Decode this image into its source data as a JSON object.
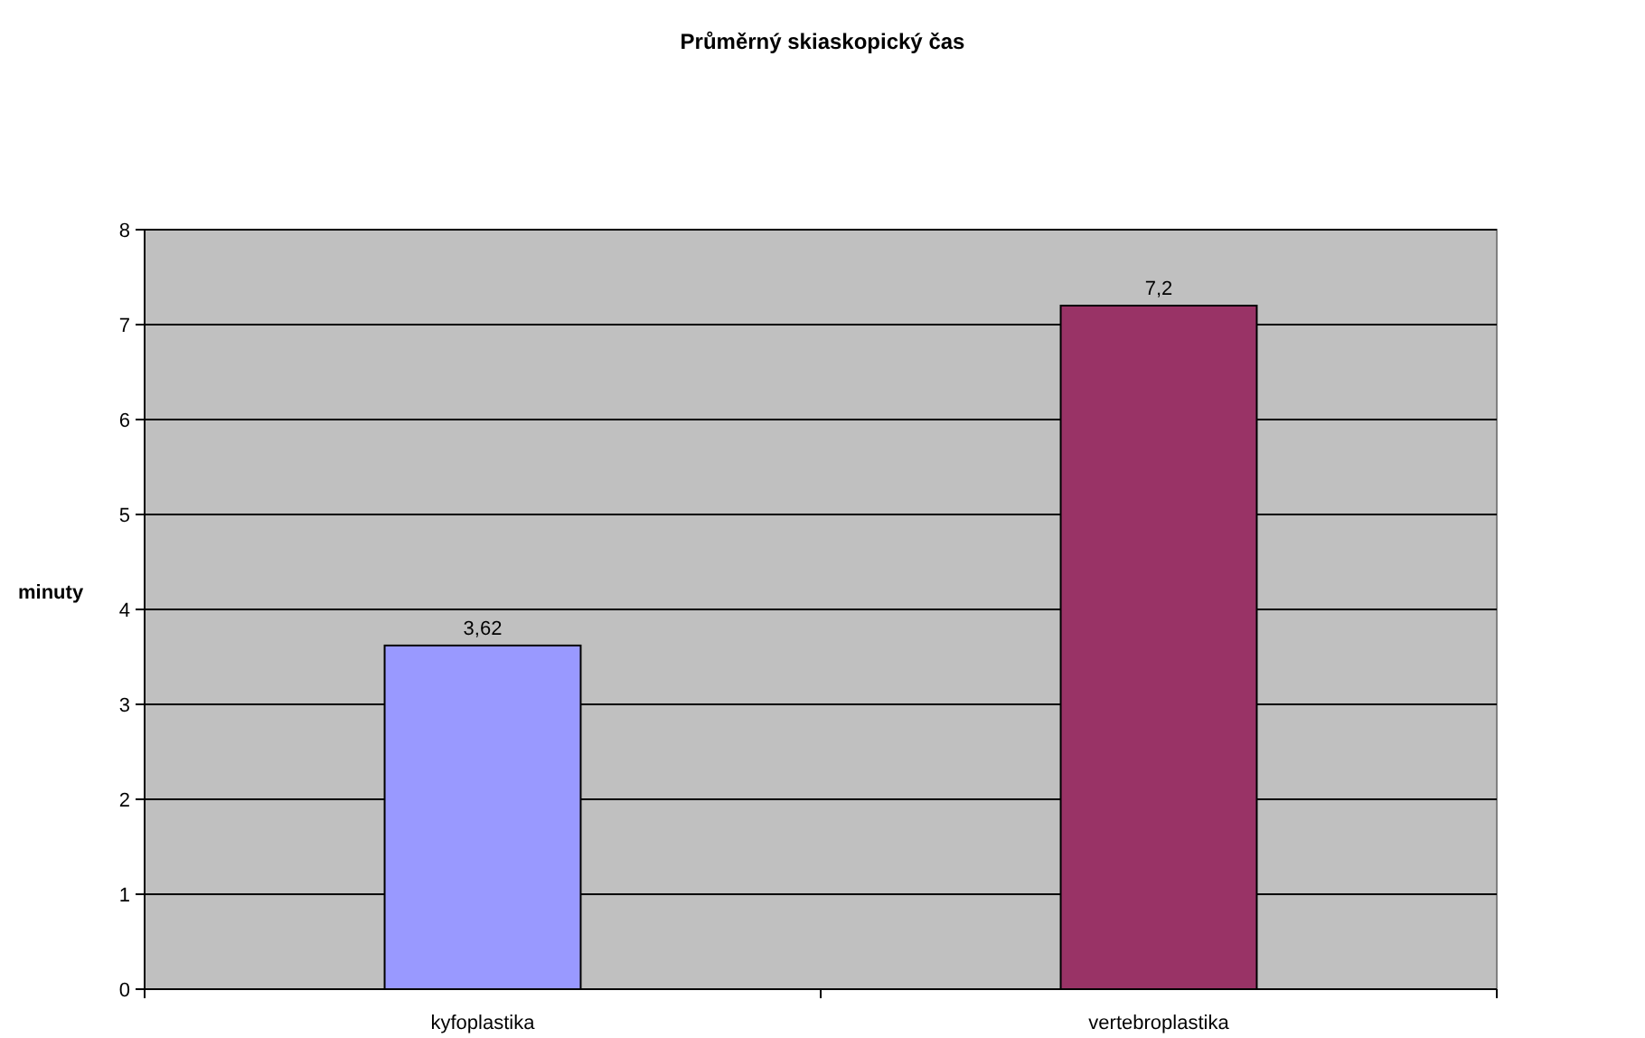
{
  "chart_data": {
    "type": "bar",
    "title": "Průměrný skiaskopický čas",
    "ylabel": "minuty",
    "categories": [
      "kyfoplastika",
      "vertebroplastika"
    ],
    "series": [
      {
        "values": [
          3.62,
          7.2
        ],
        "value_labels": [
          "3,62",
          "7,2"
        ]
      }
    ],
    "colors": [
      "#9999ff",
      "#993366"
    ],
    "ylim": [
      0,
      8
    ],
    "yticks": [
      0,
      1,
      2,
      3,
      4,
      5,
      6,
      7,
      8
    ],
    "grid": "y"
  }
}
